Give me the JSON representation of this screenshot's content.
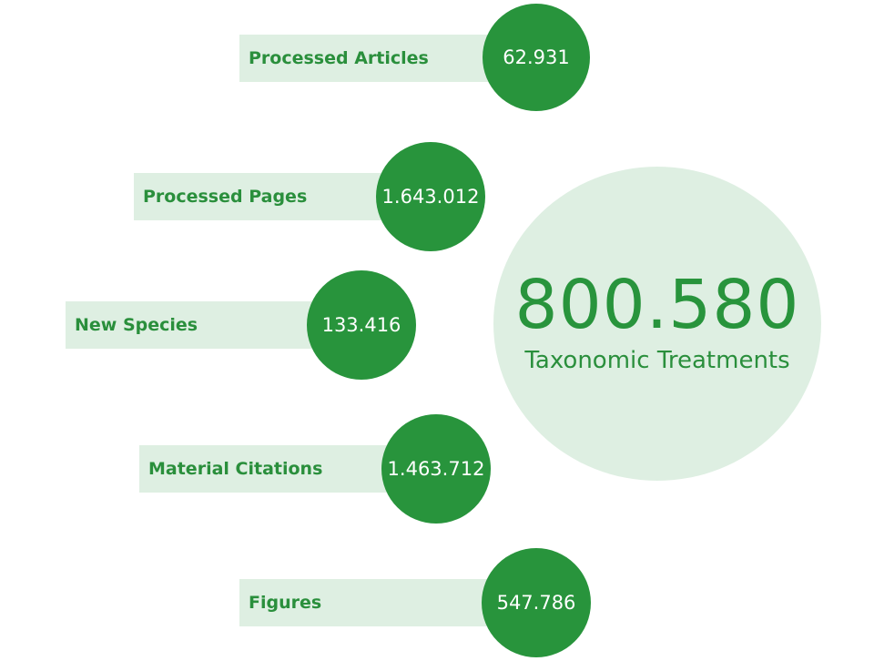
{
  "headline": {
    "value": "800.580",
    "caption": "Taxonomic Treatments"
  },
  "stats": [
    {
      "label": "Processed Articles",
      "value": "62.931"
    },
    {
      "label": "Processed Pages",
      "value": "1.643.012"
    },
    {
      "label": "New Species",
      "value": "133.416"
    },
    {
      "label": "Material Citations",
      "value": "1.463.712"
    },
    {
      "label": "Figures",
      "value": "547.786"
    }
  ],
  "colors": {
    "accent": "#28943c",
    "label_text": "#2a8f3c",
    "light_fill": "#deefe2",
    "circle_text": "#ffffff"
  }
}
